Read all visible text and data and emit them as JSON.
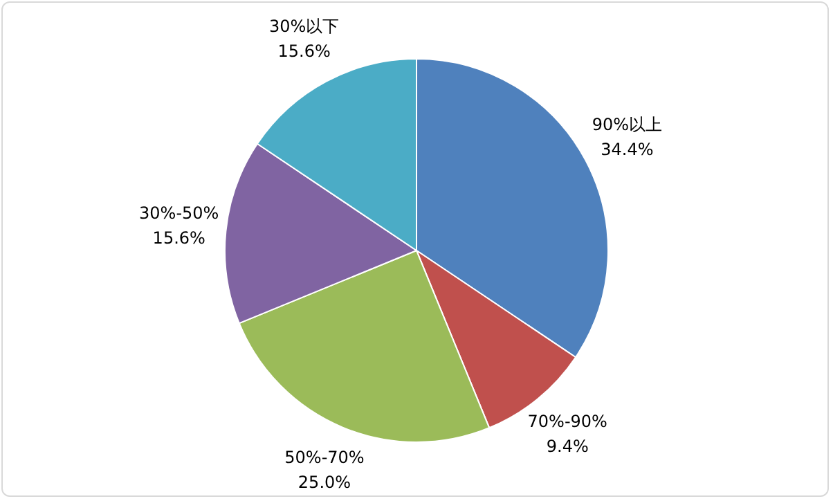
{
  "chart_data": {
    "type": "pie",
    "categories": [
      "90%以上",
      "70%-90%",
      "50%-70%",
      "30%-50%",
      "30%以下"
    ],
    "values": [
      34.4,
      9.4,
      25.0,
      15.6,
      15.6
    ],
    "colors": [
      "#4f81bd",
      "#c0504d",
      "#9bbb59",
      "#8064a2",
      "#4bacc6"
    ],
    "value_labels": [
      "34.4%",
      "9.4%",
      "25.0%",
      "15.6%",
      "15.6%"
    ],
    "legend": false
  }
}
